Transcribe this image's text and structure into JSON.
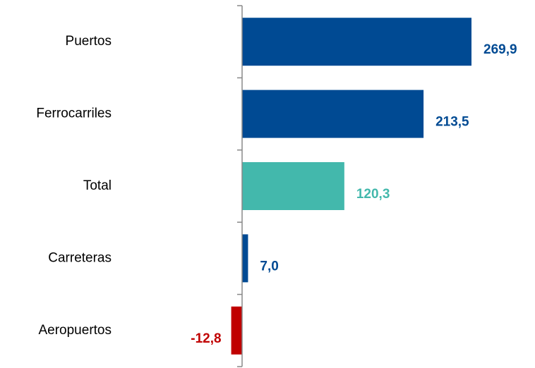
{
  "chart_data": {
    "type": "hbar",
    "categories": [
      "Puertos",
      "Ferrocarriles",
      "Total",
      "Carreteras",
      "Aeropuertos"
    ],
    "values": [
      269.9,
      213.5,
      120.3,
      7.0,
      -12.8
    ],
    "value_labels": [
      "269,9",
      "213,5",
      "120,3",
      "7,0",
      "-12,8"
    ],
    "colors": [
      "#004a93",
      "#004a93",
      "#43b8ac",
      "#004a93",
      "#c00000"
    ]
  }
}
